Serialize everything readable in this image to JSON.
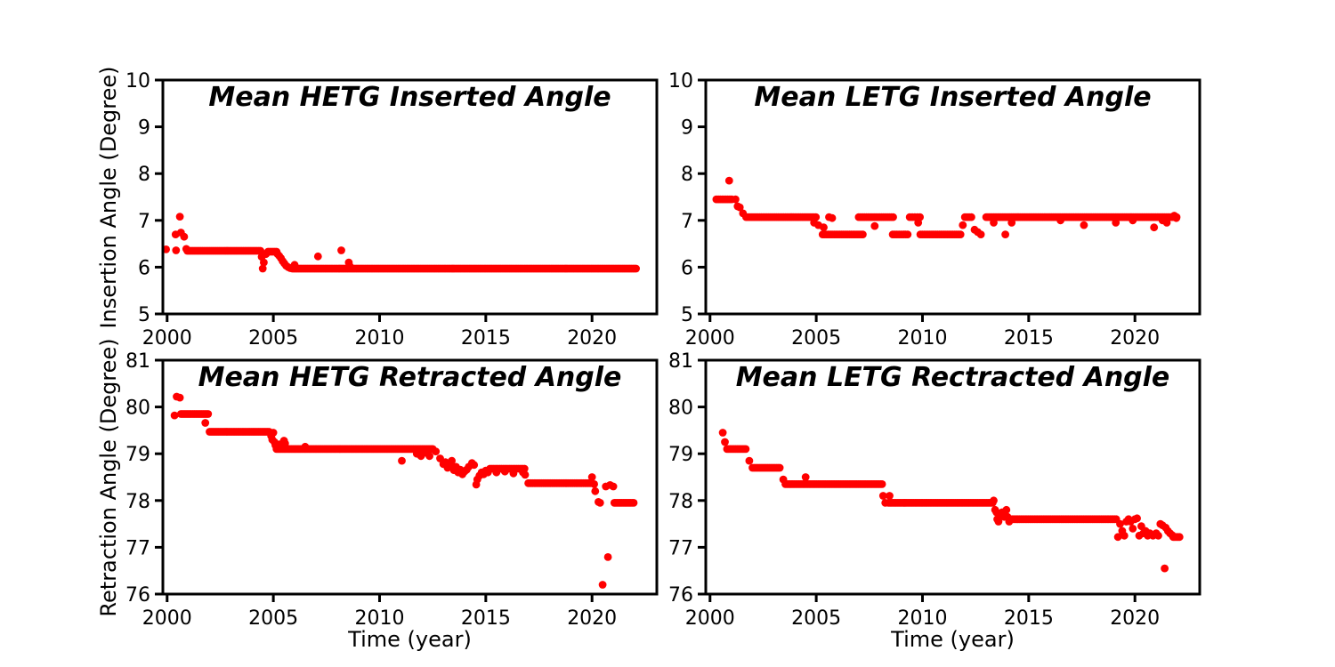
{
  "style": {
    "background": "#ffffff",
    "marker_color": "#ff0000",
    "axis_color": "#000000",
    "text_color": "#000000"
  },
  "chart_data": [
    {
      "id": "hetg-inserted",
      "type": "scatter",
      "title": "Mean HETG Inserted Angle",
      "xlabel": "",
      "ylabel": "Insertion Angle (Degree)",
      "xlim": [
        1999.8,
        2023.05
      ],
      "ylim": [
        5,
        10
      ],
      "xticks": [
        2000,
        2005,
        2010,
        2015,
        2020
      ],
      "yticks": [
        5,
        6,
        7,
        8,
        9,
        10
      ],
      "legend": null,
      "grid": false,
      "marker": "circle",
      "color": "#ff0000",
      "runs": [
        [
          2000.95,
          2004.4,
          6.35,
          0.08
        ],
        [
          2004.75,
          2005.15,
          6.33,
          0.08
        ],
        [
          2005.9,
          2022.1,
          5.97,
          0.07
        ]
      ],
      "points": [
        [
          1999.95,
          6.38
        ],
        [
          2000.4,
          6.7
        ],
        [
          2000.42,
          6.36
        ],
        [
          2000.6,
          7.08
        ],
        [
          2000.65,
          6.74
        ],
        [
          2000.8,
          6.65
        ],
        [
          2000.9,
          6.39
        ],
        [
          2004.45,
          6.22
        ],
        [
          2004.5,
          5.97
        ],
        [
          2004.55,
          6.1
        ],
        [
          2004.65,
          6.28
        ],
        [
          2005.2,
          6.28
        ],
        [
          2005.28,
          6.24
        ],
        [
          2005.36,
          6.19
        ],
        [
          2005.44,
          6.13
        ],
        [
          2005.52,
          6.08
        ],
        [
          2005.6,
          6.03
        ],
        [
          2005.7,
          6.0
        ],
        [
          2005.8,
          5.98
        ],
        [
          2006.0,
          6.05
        ],
        [
          2007.1,
          6.23
        ],
        [
          2008.2,
          6.36
        ],
        [
          2008.55,
          6.1
        ],
        [
          2008.6,
          6.02
        ]
      ]
    },
    {
      "id": "letg-inserted",
      "type": "scatter",
      "title": "Mean LETG Inserted Angle",
      "xlabel": "",
      "ylabel": "",
      "xlim": [
        1999.8,
        2023.05
      ],
      "ylim": [
        5,
        10
      ],
      "xticks": [
        2000,
        2005,
        2010,
        2015,
        2020
      ],
      "yticks": [
        5,
        6,
        7,
        8,
        9,
        10
      ],
      "legend": null,
      "grid": false,
      "marker": "circle",
      "color": "#ff0000",
      "runs": [
        [
          2000.3,
          2001.1,
          7.45,
          0.09
        ],
        [
          2001.7,
          2005.05,
          7.07,
          0.08
        ],
        [
          2005.3,
          2007.25,
          6.7,
          0.09
        ],
        [
          2007.0,
          2008.65,
          7.07,
          0.09
        ],
        [
          2008.6,
          2009.35,
          6.7,
          0.1
        ],
        [
          2009.4,
          2009.95,
          7.07,
          0.12
        ],
        [
          2009.9,
          2011.85,
          6.7,
          0.09
        ],
        [
          2012.0,
          2012.3,
          7.07,
          0.1
        ],
        [
          2013.0,
          2022.0,
          7.07,
          0.07
        ]
      ],
      "points": [
        [
          2000.9,
          7.85
        ],
        [
          2001.2,
          7.45
        ],
        [
          2001.3,
          7.3
        ],
        [
          2001.4,
          7.28
        ],
        [
          2001.55,
          7.15
        ],
        [
          2004.9,
          6.95
        ],
        [
          2005.1,
          6.9
        ],
        [
          2005.35,
          6.85
        ],
        [
          2005.6,
          7.07
        ],
        [
          2005.75,
          7.05
        ],
        [
          2007.75,
          6.88
        ],
        [
          2009.8,
          6.95
        ],
        [
          2011.9,
          6.9
        ],
        [
          2012.45,
          6.8
        ],
        [
          2012.6,
          6.75
        ],
        [
          2012.75,
          6.7
        ],
        [
          2013.35,
          6.95
        ],
        [
          2013.9,
          6.7
        ],
        [
          2014.2,
          6.95
        ],
        [
          2016.5,
          7.0
        ],
        [
          2017.6,
          6.9
        ],
        [
          2019.1,
          6.95
        ],
        [
          2019.9,
          7.0
        ],
        [
          2020.9,
          6.85
        ],
        [
          2021.3,
          7.0
        ],
        [
          2021.5,
          6.95
        ],
        [
          2021.85,
          7.1
        ],
        [
          2021.95,
          7.05
        ]
      ]
    },
    {
      "id": "hetg-retracted",
      "type": "scatter",
      "title": "Mean HETG Retracted Angle",
      "xlabel": "Time (year)",
      "ylabel": "Retraction Angle (Degree)",
      "xlim": [
        1999.8,
        2023.05
      ],
      "ylim": [
        76,
        81
      ],
      "xticks": [
        2000,
        2005,
        2010,
        2015,
        2020
      ],
      "yticks": [
        76,
        77,
        78,
        79,
        80,
        81
      ],
      "legend": null,
      "grid": false,
      "marker": "circle",
      "color": "#ff0000",
      "runs": [
        [
          2000.65,
          2002.0,
          79.85,
          0.08
        ],
        [
          2002.0,
          2004.85,
          79.47,
          0.07
        ],
        [
          2005.15,
          2012.55,
          79.1,
          0.07
        ],
        [
          2015.2,
          2016.9,
          78.68,
          0.09
        ],
        [
          2017.0,
          2019.95,
          78.37,
          0.07
        ],
        [
          2021.05,
          2022.0,
          77.95,
          0.07
        ]
      ],
      "points": [
        [
          2000.35,
          79.82
        ],
        [
          2000.45,
          80.22
        ],
        [
          2000.6,
          80.2
        ],
        [
          2001.8,
          79.66
        ],
        [
          2004.9,
          79.38
        ],
        [
          2004.95,
          79.3
        ],
        [
          2005.0,
          79.45
        ],
        [
          2005.05,
          79.25
        ],
        [
          2005.1,
          79.18
        ],
        [
          2005.3,
          79.2
        ],
        [
          2005.5,
          79.28
        ],
        [
          2005.55,
          79.22
        ],
        [
          2006.5,
          79.15
        ],
        [
          2011.05,
          78.85
        ],
        [
          2011.75,
          79.0
        ],
        [
          2011.95,
          78.95
        ],
        [
          2012.15,
          79.02
        ],
        [
          2012.35,
          78.95
        ],
        [
          2012.65,
          79.05
        ],
        [
          2012.85,
          78.9
        ],
        [
          2013.0,
          78.78
        ],
        [
          2013.1,
          78.82
        ],
        [
          2013.2,
          78.7
        ],
        [
          2013.3,
          78.76
        ],
        [
          2013.4,
          78.85
        ],
        [
          2013.5,
          78.65
        ],
        [
          2013.6,
          78.72
        ],
        [
          2013.7,
          78.6
        ],
        [
          2013.8,
          78.66
        ],
        [
          2013.9,
          78.56
        ],
        [
          2014.0,
          78.62
        ],
        [
          2014.1,
          78.66
        ],
        [
          2014.2,
          78.72
        ],
        [
          2014.35,
          78.8
        ],
        [
          2014.45,
          78.76
        ],
        [
          2014.55,
          78.34
        ],
        [
          2014.6,
          78.45
        ],
        [
          2014.7,
          78.53
        ],
        [
          2014.8,
          78.6
        ],
        [
          2014.9,
          78.56
        ],
        [
          2015.0,
          78.64
        ],
        [
          2015.1,
          78.6
        ],
        [
          2015.5,
          78.6
        ],
        [
          2015.9,
          78.62
        ],
        [
          2016.3,
          78.58
        ],
        [
          2016.75,
          78.6
        ],
        [
          2016.85,
          78.55
        ],
        [
          2020.0,
          78.5
        ],
        [
          2020.1,
          78.35
        ],
        [
          2020.15,
          78.2
        ],
        [
          2020.3,
          77.97
        ],
        [
          2020.38,
          77.95
        ],
        [
          2020.5,
          76.2
        ],
        [
          2020.75,
          76.79
        ],
        [
          2020.65,
          78.3
        ],
        [
          2020.85,
          78.33
        ],
        [
          2021.0,
          78.3
        ]
      ]
    },
    {
      "id": "letg-retracted",
      "type": "scatter",
      "title": "Mean LETG Rectracted Angle",
      "xlabel": "Time (year)",
      "ylabel": "",
      "xlim": [
        1999.8,
        2023.05
      ],
      "ylim": [
        76,
        81
      ],
      "xticks": [
        2000,
        2005,
        2010,
        2015,
        2020
      ],
      "yticks": [
        76,
        77,
        78,
        79,
        80,
        81
      ],
      "legend": null,
      "grid": false,
      "marker": "circle",
      "color": "#ff0000",
      "runs": [
        [
          2000.8,
          2001.75,
          79.1,
          0.08
        ],
        [
          2002.0,
          2003.3,
          78.7,
          0.08
        ],
        [
          2003.55,
          2008.1,
          78.35,
          0.07
        ],
        [
          2008.4,
          2013.3,
          77.95,
          0.07
        ],
        [
          2014.15,
          2019.15,
          77.6,
          0.07
        ],
        [
          2021.8,
          2022.1,
          77.22,
          0.06
        ]
      ],
      "points": [
        [
          2000.6,
          79.45
        ],
        [
          2000.7,
          79.25
        ],
        [
          2001.85,
          78.85
        ],
        [
          2003.45,
          78.45
        ],
        [
          2004.5,
          78.5
        ],
        [
          2008.15,
          78.1
        ],
        [
          2008.25,
          77.95
        ],
        [
          2008.45,
          78.1
        ],
        [
          2013.35,
          78.0
        ],
        [
          2013.42,
          77.8
        ],
        [
          2013.48,
          77.75
        ],
        [
          2013.52,
          77.6
        ],
        [
          2013.58,
          77.55
        ],
        [
          2013.65,
          77.7
        ],
        [
          2013.75,
          77.75
        ],
        [
          2013.85,
          77.65
        ],
        [
          2013.95,
          77.8
        ],
        [
          2014.0,
          77.65
        ],
        [
          2014.08,
          77.55
        ],
        [
          2019.2,
          77.22
        ],
        [
          2019.3,
          77.5
        ],
        [
          2019.4,
          77.35
        ],
        [
          2019.5,
          77.25
        ],
        [
          2019.6,
          77.55
        ],
        [
          2019.7,
          77.6
        ],
        [
          2019.8,
          77.55
        ],
        [
          2019.9,
          77.4
        ],
        [
          2020.0,
          77.6
        ],
        [
          2020.1,
          77.62
        ],
        [
          2020.2,
          77.25
        ],
        [
          2020.3,
          77.45
        ],
        [
          2020.4,
          77.3
        ],
        [
          2020.5,
          77.35
        ],
        [
          2020.6,
          77.25
        ],
        [
          2020.7,
          77.3
        ],
        [
          2020.85,
          77.25
        ],
        [
          2021.0,
          77.3
        ],
        [
          2021.1,
          77.25
        ],
        [
          2021.2,
          77.5
        ],
        [
          2021.3,
          77.47
        ],
        [
          2021.4,
          76.55
        ],
        [
          2021.45,
          77.42
        ],
        [
          2021.55,
          77.35
        ],
        [
          2021.65,
          77.3
        ],
        [
          2021.75,
          77.26
        ]
      ]
    }
  ]
}
